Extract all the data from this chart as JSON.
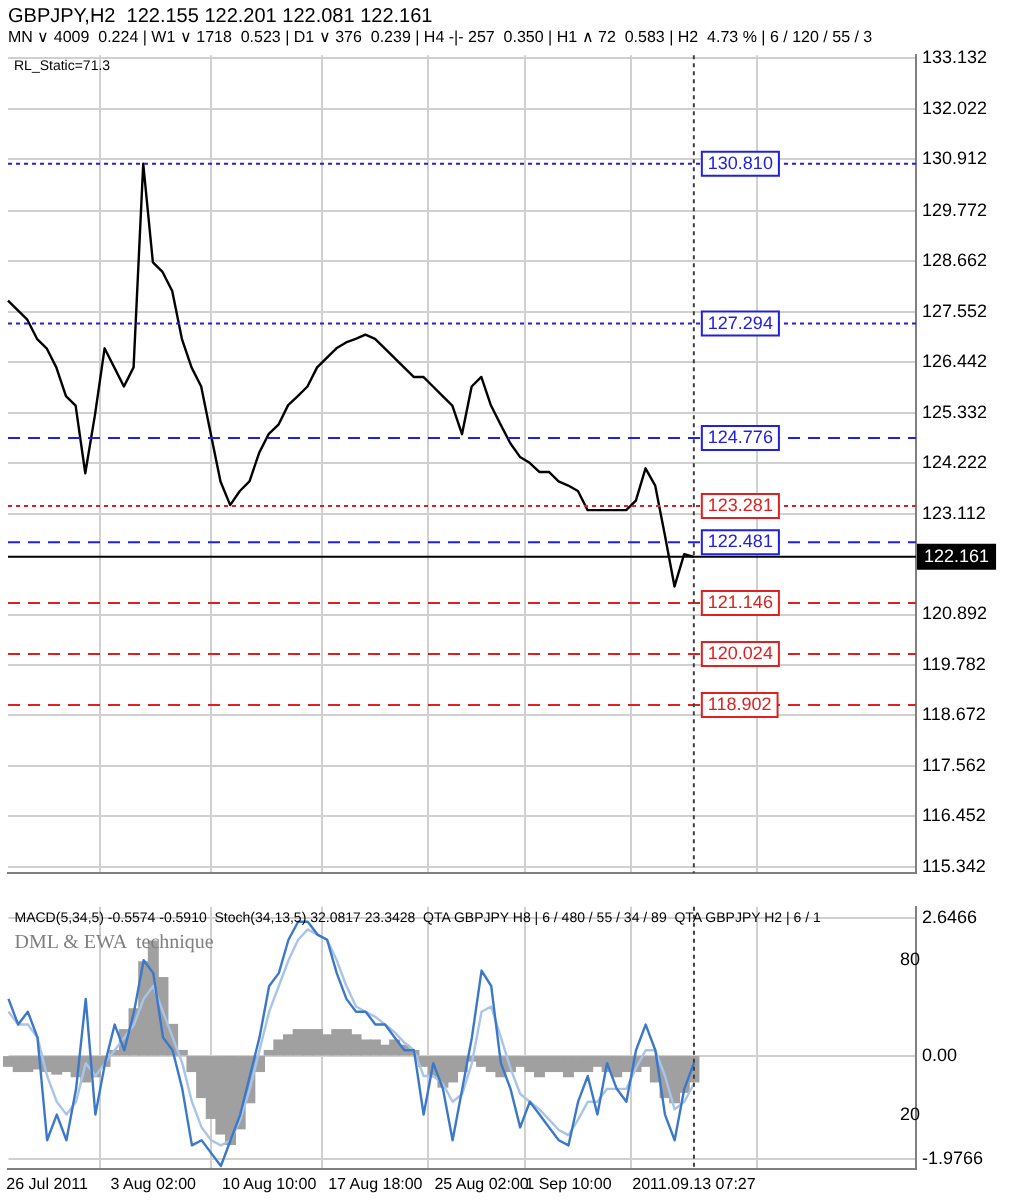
{
  "chart_data": [
    {
      "type": "line",
      "title": "GBPJPY,H2  122.155 122.201 122.081 122.161",
      "subtitle": "MN ∨ 4009  0.224 | W1 ∨ 1718  0.523 | D1 ∨ 376  0.239 | H4 -|- 257  0.350 | H1 ∧ 72  0.583 | H2  4.73 % | 6 / 120 / 55 / 3",
      "annotations": [
        "RL_Static=71.3"
      ],
      "categories": [
        null,
        null,
        null,
        null,
        "26 Jul 2011",
        null,
        null,
        null,
        null,
        null,
        null,
        null,
        null,
        null,
        null,
        "3 Aug 02:00",
        null,
        null,
        null,
        null,
        null,
        null,
        null,
        null,
        null,
        null,
        null,
        "10 Aug 10:00",
        null,
        null,
        null,
        null,
        null,
        null,
        null,
        null,
        null,
        null,
        "17 Aug 18:00",
        null,
        null,
        null,
        null,
        null,
        null,
        null,
        null,
        null,
        null,
        "25 Aug 02:00",
        null,
        null,
        null,
        null,
        null,
        null,
        null,
        null,
        "1 Sep 10:00",
        null,
        null,
        null,
        null,
        null,
        null,
        null,
        null,
        null,
        null,
        null,
        null,
        "2011.09.13 07:27",
        null,
        null,
        null,
        null,
        null,
        null,
        null,
        null,
        null,
        null,
        null,
        null,
        null,
        null,
        null,
        null,
        null,
        null,
        null,
        null,
        null,
        null,
        null
      ],
      "series": [
        {
          "color": "#000000",
          "values": [
            127.8,
            127.59,
            127.38,
            126.96,
            126.75,
            126.33,
            125.7,
            125.49,
            124.0,
            125.28,
            126.75,
            126.33,
            125.91,
            126.33,
            130.81,
            128.64,
            128.43,
            128.01,
            126.96,
            126.33,
            125.91,
            124.86,
            123.82,
            123.3,
            123.61,
            123.82,
            124.45,
            124.87,
            125.07,
            125.5,
            125.7,
            125.91,
            126.33,
            126.54,
            126.75,
            126.88,
            126.96,
            127.05,
            126.96,
            126.75,
            126.54,
            126.33,
            126.12,
            126.12,
            125.91,
            125.7,
            125.49,
            124.86,
            125.91,
            126.12,
            125.49,
            125.07,
            124.66,
            124.36,
            124.23,
            124.03,
            124.03,
            123.82,
            123.73,
            123.61,
            123.19,
            123.19,
            123.19,
            123.19,
            123.19,
            123.4,
            124.11,
            123.73,
            122.64,
            121.51,
            122.22,
            122.16,
            null,
            null,
            null,
            null,
            null,
            null,
            null,
            null,
            null,
            null,
            null,
            null,
            null,
            null,
            null,
            null,
            null,
            null,
            null,
            null,
            null,
            null,
            null
          ]
        }
      ],
      "ylim": [
        115.2,
        133.2
      ],
      "yticks": [
        133.132,
        132.022,
        130.912,
        129.772,
        128.662,
        127.552,
        126.442,
        125.332,
        124.222,
        123.112,
        120.892,
        119.782,
        118.672,
        117.562,
        116.452,
        115.342
      ],
      "ref_lines": [
        {
          "axis": "y",
          "value": 130.81,
          "label": "130.810",
          "color": "#2020e0",
          "line_style": "dotted"
        },
        {
          "axis": "y",
          "value": 127.294,
          "label": "127.294",
          "color": "#2020e0",
          "line_style": "dotted"
        },
        {
          "axis": "y",
          "value": 124.776,
          "label": "124.776",
          "color": "#2020e0",
          "line_style": "dashed"
        },
        {
          "axis": "y",
          "value": 123.281,
          "label": "123.281",
          "color": "#e02020",
          "line_style": "dotted"
        },
        {
          "axis": "y",
          "value": 122.481,
          "label": "122.481",
          "color": "#2020e0",
          "line_style": "dashed"
        },
        {
          "axis": "y",
          "value": 121.146,
          "label": "121.146",
          "color": "#e02020",
          "line_style": "dashed"
        },
        {
          "axis": "y",
          "value": 120.024,
          "label": "120.024",
          "color": "#e02020",
          "line_style": "dashed"
        },
        {
          "axis": "y",
          "value": 118.902,
          "label": "118.902",
          "color": "#e02020",
          "line_style": "dashed"
        },
        {
          "axis": "y",
          "value": 122.161,
          "label": "122.161",
          "color": "#000000",
          "line_style": "solid"
        },
        {
          "axis": "x",
          "value": "2011.09.13 07:27",
          "color": "#404040",
          "line_style": "dotted"
        }
      ],
      "grid": true,
      "legend": false,
      "tick_labels": "y"
    },
    {
      "type": "bar",
      "annotations": [
        "MACD(5,34,5) -0.5574 -0.5910  Stoch(34,13,5) 32.0817 23.3428  QTA GBPJPY H8 | 6 / 480 / 55 / 34 / 89  QTA GBPJPY H2 | 6 / 1",
        "DML & EWA  technique"
      ],
      "categories": [
        null,
        null,
        null,
        null,
        "26 Jul 2011",
        null,
        null,
        null,
        null,
        null,
        null,
        null,
        null,
        null,
        null,
        "3 Aug 02:00",
        null,
        null,
        null,
        null,
        null,
        null,
        null,
        null,
        null,
        null,
        null,
        "10 Aug 10:00",
        null,
        null,
        null,
        null,
        null,
        null,
        null,
        null,
        null,
        null,
        "17 Aug 18:00",
        null,
        null,
        null,
        null,
        null,
        null,
        null,
        null,
        null,
        null,
        "25 Aug 02:00",
        null,
        null,
        null,
        null,
        null,
        null,
        null,
        null,
        "1 Sep 10:00",
        null,
        null,
        null,
        null,
        null,
        null,
        null,
        null,
        null,
        null,
        null,
        null,
        "2011.09.13 07:27",
        null,
        null,
        null,
        null,
        null,
        null,
        null,
        null,
        null,
        null,
        null,
        null,
        null,
        null,
        null,
        null,
        null,
        null,
        null,
        null,
        null,
        null,
        null
      ],
      "series": [
        {
          "type": "line",
          "axis": "y2",
          "color": "#3c78c8",
          "values": [
            65,
            55,
            60,
            50,
            10,
            20,
            10,
            30,
            65,
            20,
            40,
            55,
            45,
            60,
            80,
            75,
            50,
            45,
            30,
            8,
            10,
            5,
            0,
            10,
            20,
            35,
            50,
            70,
            75,
            88,
            95,
            95,
            90,
            88,
            75,
            65,
            60,
            60,
            55,
            55,
            50,
            45,
            45,
            20,
            40,
            30,
            10,
            30,
            50,
            76,
            70,
            40,
            30,
            15,
            25,
            20,
            15,
            10,
            8,
            25,
            35,
            20,
            40,
            30,
            25,
            45,
            55,
            45,
            20,
            10,
            30,
            40,
            null,
            null,
            null,
            null,
            null,
            null,
            null,
            null,
            null,
            null,
            null,
            null,
            null,
            null,
            null,
            null,
            null,
            null,
            null,
            null,
            null,
            null,
            null
          ]
        },
        {
          "type": "line",
          "axis": "y2",
          "color": "#a8c4e8",
          "values": [
            60,
            55,
            55,
            50,
            35,
            25,
            20,
            25,
            40,
            35,
            40,
            45,
            50,
            55,
            65,
            70,
            60,
            50,
            40,
            25,
            15,
            10,
            8,
            10,
            18,
            30,
            45,
            60,
            70,
            80,
            88,
            92,
            90,
            88,
            80,
            70,
            62,
            60,
            58,
            55,
            52,
            48,
            45,
            35,
            35,
            32,
            25,
            28,
            40,
            60,
            62,
            50,
            38,
            28,
            25,
            22,
            18,
            14,
            12,
            18,
            25,
            25,
            30,
            30,
            30,
            38,
            45,
            45,
            35,
            22,
            25,
            32,
            null,
            null,
            null,
            null,
            null,
            null,
            null,
            null,
            null,
            null,
            null,
            null,
            null,
            null,
            null,
            null,
            null,
            null,
            null,
            null,
            null,
            null,
            null
          ]
        },
        {
          "color": "#a0a0a0",
          "values": [
            -0.2,
            -0.3,
            -0.3,
            -0.25,
            -0.3,
            -0.35,
            -0.3,
            -0.4,
            -0.5,
            -0.4,
            -0.2,
            0.1,
            0.5,
            0.9,
            1.8,
            2.2,
            1.5,
            0.6,
            0.1,
            -0.3,
            -0.8,
            -1.2,
            -1.5,
            -1.7,
            -1.4,
            -0.9,
            -0.3,
            0.1,
            0.3,
            0.4,
            0.5,
            0.5,
            0.5,
            0.4,
            0.5,
            0.5,
            0.4,
            0.3,
            0.3,
            0.2,
            0.3,
            0.2,
            0.1,
            -0.2,
            -0.4,
            -0.6,
            -0.5,
            -0.3,
            -0.1,
            -0.2,
            -0.3,
            -0.4,
            -0.3,
            -0.2,
            -0.3,
            -0.4,
            -0.3,
            -0.3,
            -0.4,
            -0.3,
            -0.3,
            -0.2,
            -0.3,
            -0.4,
            -0.3,
            -0.3,
            -0.2,
            -0.5,
            -0.8,
            -0.9,
            -0.7,
            -0.5,
            null,
            null,
            null,
            null,
            null,
            null,
            null,
            null,
            null,
            null,
            null,
            null,
            null,
            null,
            null,
            null,
            null,
            null,
            null,
            null,
            null,
            null,
            null
          ]
        }
      ],
      "ylim": [
        -2.17,
        2.86
      ],
      "yticks": [
        2.6466,
        {
          "value": 0,
          "label": "0.00"
        },
        -1.9766
      ],
      "y2lim": [
        -1.1,
        100.8
      ],
      "y2ticks": [
        80,
        20
      ],
      "ref_lines": [
        {
          "axis": "x",
          "value": "2011.09.13 07:27",
          "color": "#404040",
          "line_style": "dotted"
        }
      ],
      "grid": true,
      "legend": false
    }
  ]
}
